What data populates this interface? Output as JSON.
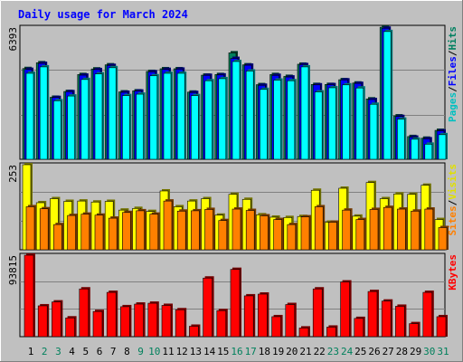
{
  "chart_data": [
    {
      "type": "bar",
      "title": "Daily usage for March 2024",
      "categories": [
        "1",
        "2",
        "3",
        "4",
        "5",
        "6",
        "7",
        "8",
        "9",
        "10",
        "11",
        "12",
        "13",
        "14",
        "15",
        "16",
        "17",
        "18",
        "19",
        "20",
        "21",
        "22",
        "23",
        "24",
        "25",
        "26",
        "27",
        "28",
        "29",
        "30",
        "31"
      ],
      "weekend_categories": [
        "2",
        "3",
        "9",
        "10",
        "16",
        "17",
        "23",
        "24",
        "30",
        "31"
      ],
      "ylim": [
        0,
        6393
      ],
      "y_max_label": "6393",
      "right_label_parts": [
        "Pages",
        "/",
        "Files",
        "/",
        "Hits"
      ],
      "series": [
        {
          "name": "Hits",
          "color": "#00805c",
          "values": [
            4390,
            4670,
            3000,
            3280,
            4100,
            4370,
            4570,
            3260,
            3310,
            4250,
            4380,
            4380,
            3250,
            4070,
            4100,
            5150,
            4570,
            3610,
            4100,
            4010,
            4600,
            3620,
            3620,
            3850,
            3690,
            2920,
            6390,
            2100,
            1100,
            1020,
            1400
          ]
        },
        {
          "name": "Files",
          "color": "#0000ff",
          "values": [
            4350,
            4640,
            2990,
            3270,
            4070,
            4340,
            4540,
            3240,
            3300,
            4230,
            4350,
            4360,
            3230,
            4060,
            4080,
            4880,
            4550,
            3580,
            4060,
            3980,
            4580,
            3600,
            3610,
            3840,
            3670,
            2890,
            6340,
            2070,
            1070,
            990,
            1370
          ]
        },
        {
          "name": "Pages",
          "color": "#00ffff",
          "values": [
            4160,
            4470,
            2830,
            3060,
            3860,
            4130,
            4430,
            3080,
            3150,
            4040,
            4160,
            4160,
            3080,
            3800,
            3900,
            4730,
            4270,
            3380,
            3830,
            3800,
            4470,
            3260,
            3460,
            3600,
            3450,
            2660,
            6180,
            1940,
            970,
            730,
            1190
          ]
        }
      ]
    },
    {
      "type": "bar",
      "categories": [
        "1",
        "2",
        "3",
        "4",
        "5",
        "6",
        "7",
        "8",
        "9",
        "10",
        "11",
        "12",
        "13",
        "14",
        "15",
        "16",
        "17",
        "18",
        "19",
        "20",
        "21",
        "22",
        "23",
        "24",
        "25",
        "26",
        "27",
        "28",
        "29",
        "30",
        "31"
      ],
      "ylim": [
        0,
        253
      ],
      "y_max_label": "253",
      "right_label_parts": [
        "Sites",
        "/",
        "Visits"
      ],
      "series": [
        {
          "name": "Visits",
          "color": "#ffff00",
          "values": [
            253,
            140,
            152,
            144,
            145,
            142,
            144,
            118,
            123,
            114,
            175,
            128,
            145,
            152,
            103,
            165,
            150,
            104,
            97,
            96,
            99,
            177,
            82,
            183,
            100,
            200,
            152,
            166,
            165,
            192,
            90
          ]
        },
        {
          "name": "Sites",
          "color": "#ff8000",
          "values": [
            128,
            122,
            75,
            102,
            106,
            103,
            94,
            111,
            116,
            106,
            145,
            115,
            116,
            120,
            87,
            121,
            117,
            101,
            90,
            75,
            98,
            128,
            82,
            118,
            90,
            120,
            126,
            121,
            115,
            121,
            66
          ]
        }
      ]
    },
    {
      "type": "bar",
      "categories": [
        "1",
        "2",
        "3",
        "4",
        "5",
        "6",
        "7",
        "8",
        "9",
        "10",
        "11",
        "12",
        "13",
        "14",
        "15",
        "16",
        "17",
        "18",
        "19",
        "20",
        "21",
        "22",
        "23",
        "24",
        "25",
        "26",
        "27",
        "28",
        "29",
        "30",
        "31"
      ],
      "ylim": [
        0,
        93815
      ],
      "y_max_label": "93815",
      "right_label_parts": [
        "KBytes"
      ],
      "series": [
        {
          "name": "KBytes",
          "color": "#ff0000",
          "values": [
            93815,
            35500,
            40000,
            21600,
            55000,
            29000,
            51000,
            34500,
            37500,
            38500,
            36000,
            31000,
            12000,
            67500,
            30000,
            77500,
            47000,
            49000,
            23000,
            37000,
            10000,
            55000,
            11000,
            63000,
            21000,
            52000,
            41000,
            35000,
            15000,
            51000,
            23000
          ]
        }
      ]
    }
  ]
}
